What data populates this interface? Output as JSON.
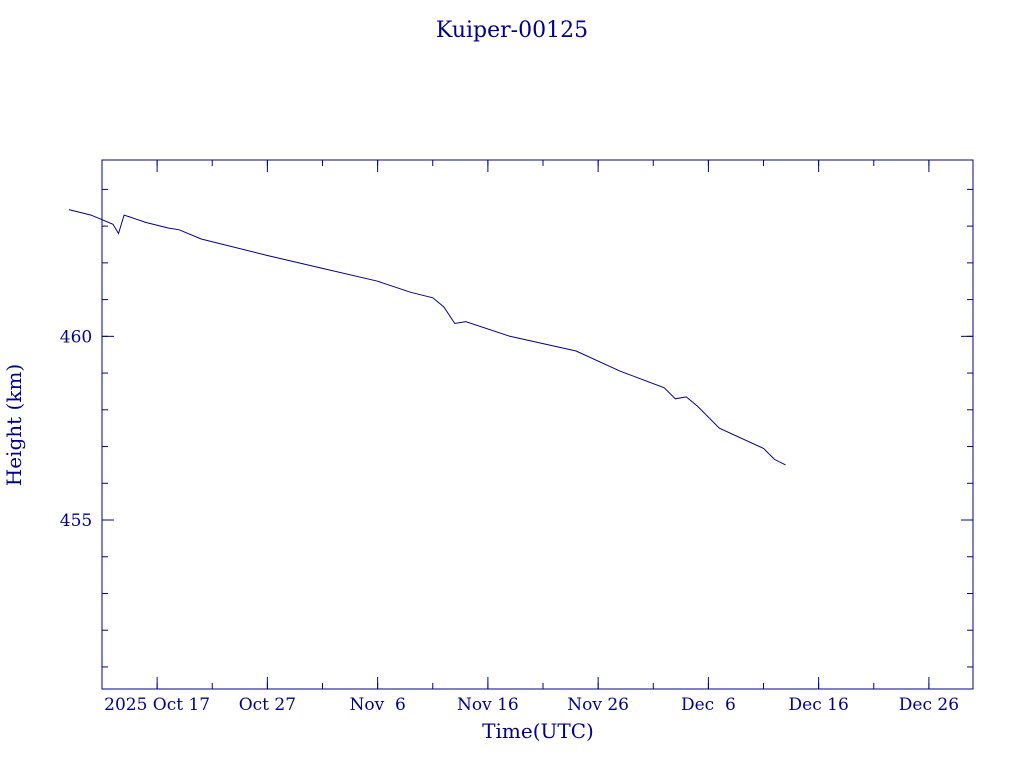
{
  "chart_data": {
    "type": "line",
    "title": "Kuiper-00125",
    "xlabel": "Time(UTC)",
    "ylabel": "Height (km)",
    "x_tick_labels": [
      "2025 Oct 17",
      "Oct 27",
      "Nov  6",
      "Nov 16",
      "Nov 26",
      "Dec  6",
      "Dec 16",
      "Dec 26"
    ],
    "y_tick_labels": [
      "455",
      "460"
    ],
    "y_ticks": [
      455,
      460
    ],
    "x_ticks": [
      "2025-10-17",
      "2025-10-27",
      "2025-11-06",
      "2025-11-16",
      "2025-11-26",
      "2025-12-06",
      "2025-12-16",
      "2025-12-26"
    ],
    "xlim": [
      "2025-10-12",
      "2025-12-30"
    ],
    "ylim": [
      450.4,
      464.8
    ],
    "grid": false,
    "series": [
      {
        "x": [
          "2025-10-09",
          "2025-10-11",
          "2025-10-13",
          "2025-10-13T12:00",
          "2025-10-14",
          "2025-10-14T12:00",
          "2025-10-15",
          "2025-10-16",
          "2025-10-18",
          "2025-10-19",
          "2025-10-21",
          "2025-10-23",
          "2025-10-27",
          "2025-11-01",
          "2025-11-06",
          "2025-11-09",
          "2025-11-11",
          "2025-11-12",
          "2025-11-13",
          "2025-11-14",
          "2025-11-18",
          "2025-11-24",
          "2025-11-28",
          "2025-12-02",
          "2025-12-03",
          "2025-12-04",
          "2025-12-05",
          "2025-12-07",
          "2025-12-11",
          "2025-12-12",
          "2025-12-13"
        ],
        "y": [
          463.45,
          463.3,
          463.05,
          462.8,
          463.3,
          463.25,
          463.2,
          463.1,
          462.95,
          462.9,
          462.65,
          462.5,
          462.2,
          461.85,
          461.5,
          461.2,
          461.05,
          460.8,
          460.35,
          460.4,
          460.0,
          459.6,
          459.05,
          458.6,
          458.3,
          458.35,
          458.1,
          457.5,
          456.95,
          456.65,
          456.5
        ]
      }
    ]
  }
}
